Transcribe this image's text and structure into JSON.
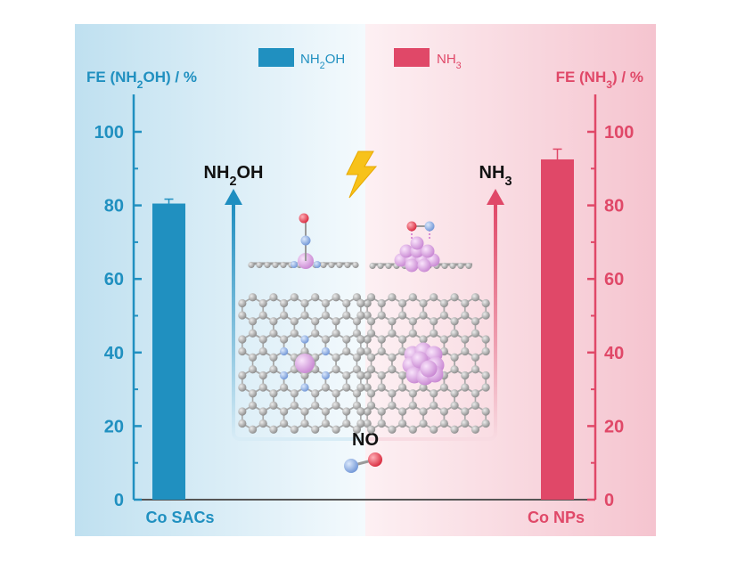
{
  "legend": {
    "left_label": "NH2OH",
    "right_label": "NH3"
  },
  "axes": {
    "left_title": "FE (NH2OH) / %",
    "right_title": "FE (NH3) / %",
    "left_ticks": [
      "0",
      "20",
      "40",
      "60",
      "80",
      "100"
    ],
    "right_ticks": [
      "0",
      "20",
      "40",
      "60",
      "80",
      "100"
    ]
  },
  "labels": {
    "left_category": "Co SACs",
    "right_category": "Co NPs",
    "left_product": "NH2OH",
    "right_product": "NH3",
    "reactant": "NO"
  },
  "colors": {
    "blue": "#2090c0",
    "red": "#e04868",
    "bg_blue": "#bfe0f0",
    "bg_red": "#f7c9d3",
    "carbon": "#a8a8a8",
    "nitrogen": "#98b8e8",
    "cobalt": "#e8b0ee",
    "oxygen": "#e84858"
  },
  "chart_data": {
    "type": "bar",
    "categories": [
      "Co SACs",
      "Co NPs"
    ],
    "series": [
      {
        "name": "NH2OH",
        "axis": "left",
        "category": "Co SACs",
        "value": 80.5,
        "error": 1.2
      },
      {
        "name": "NH3",
        "axis": "right",
        "category": "Co NPs",
        "value": 92.5,
        "error": 2.8
      }
    ],
    "ylabel_left": "FE (NH2OH) / %",
    "ylabel_right": "FE (NH3) / %",
    "ylim": [
      0,
      110
    ],
    "yticks": [
      0,
      20,
      40,
      60,
      80,
      100
    ],
    "legend_position": "top-center"
  }
}
